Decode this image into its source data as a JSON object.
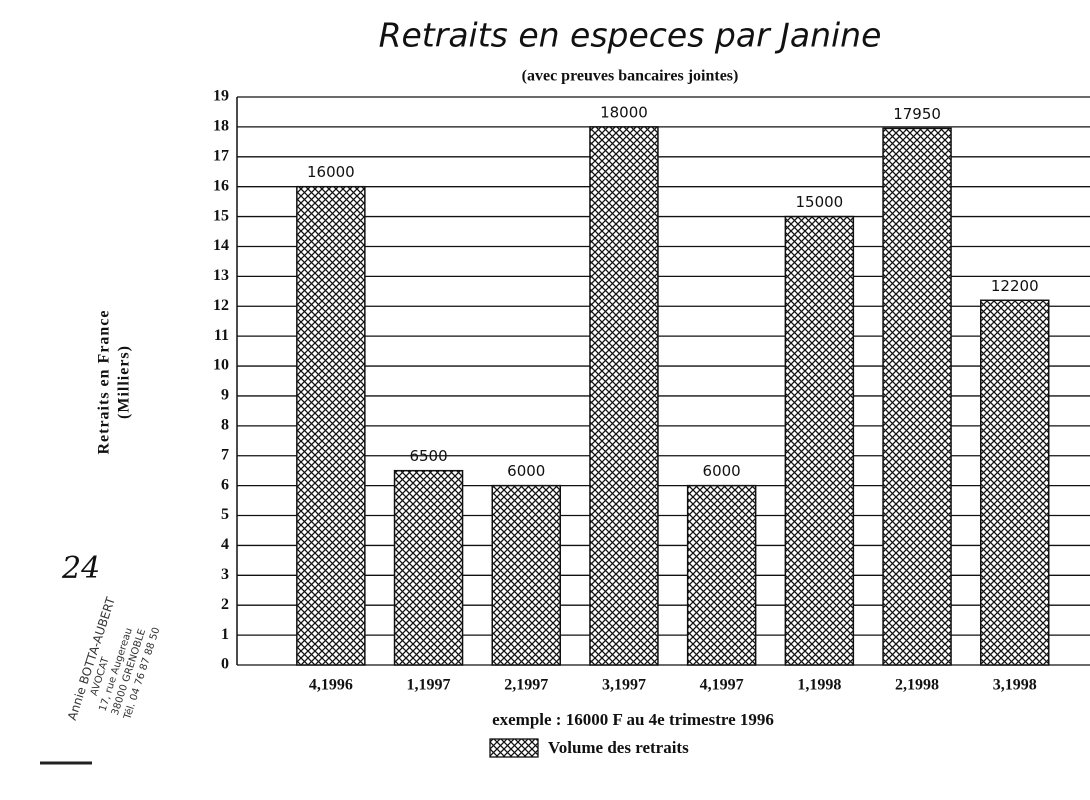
{
  "chart_data": {
    "type": "bar",
    "title": "Retraits en especes par Janine",
    "subtitle": "(avec preuves bancaires jointes)",
    "y_label": [
      "Retraits en France",
      "(Milliers)"
    ],
    "footnote": "exemple : 16000 F au 4e trimestre 1996",
    "categories": [
      "4,1996",
      "1,1997",
      "2,1997",
      "3,1997",
      "4,1997",
      "1,1998",
      "2,1998",
      "3,1998"
    ],
    "series": [
      {
        "name": "Volume des retraits",
        "color": "#111111",
        "values": [
          16,
          6.5,
          6,
          18,
          6,
          15,
          17.95,
          12.2
        ],
        "value_labels": [
          "16000",
          "6500",
          "6000",
          "18000",
          "6000",
          "15000",
          "17950",
          "12200"
        ]
      }
    ],
    "ylim": [
      0,
      19
    ],
    "yticks": [
      0,
      1,
      2,
      3,
      4,
      5,
      6,
      7,
      8,
      9,
      10,
      11,
      12,
      13,
      14,
      15,
      16,
      17,
      18,
      19
    ],
    "grid": true,
    "pattern": "crosshatch",
    "legend": "bottom",
    "stamp": [
      "Annie BOTTA-AUBERT",
      "AVOCAT",
      "17, rue Augereau",
      "38000 GRENOBLE",
      "Tél. 04 76 87 88 50"
    ],
    "handwriting": "24"
  }
}
